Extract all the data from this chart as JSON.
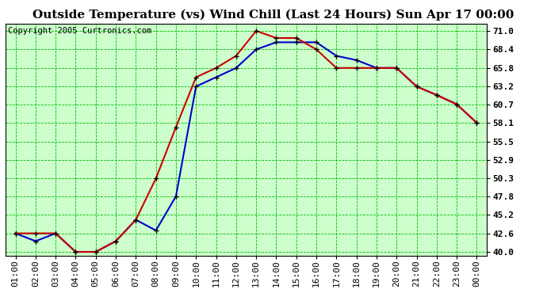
{
  "title": "Outside Temperature (vs) Wind Chill (Last 24 Hours) Sun Apr 17 00:00",
  "copyright": "Copyright 2005 Curtronics.com",
  "background_color": "#ffffff",
  "plot_background": "#ccffcc",
  "grid_color": "#00bb00",
  "x_labels": [
    "01:00",
    "02:00",
    "03:00",
    "04:00",
    "05:00",
    "06:00",
    "07:00",
    "08:00",
    "09:00",
    "10:00",
    "11:00",
    "12:00",
    "13:00",
    "14:00",
    "15:00",
    "16:00",
    "17:00",
    "18:00",
    "19:00",
    "20:00",
    "21:00",
    "22:00",
    "23:00",
    "00:00"
  ],
  "temp_color": "#cc0000",
  "windchill_color": "#0000cc",
  "marker_color": "#000000",
  "temp_values": [
    42.6,
    42.6,
    42.6,
    40.0,
    40.0,
    41.5,
    44.5,
    50.3,
    57.5,
    64.5,
    65.8,
    67.5,
    71.0,
    70.0,
    70.0,
    68.4,
    65.8,
    65.8,
    65.8,
    65.8,
    63.2,
    62.0,
    60.7,
    58.1
  ],
  "windchill_values": [
    42.6,
    41.5,
    42.6,
    40.0,
    40.0,
    41.5,
    44.5,
    43.0,
    47.8,
    63.2,
    64.5,
    65.8,
    68.4,
    69.4,
    69.4,
    69.4,
    67.5,
    66.9,
    65.8,
    65.8,
    63.2,
    62.0,
    60.7,
    58.1
  ],
  "yticks": [
    40.0,
    42.6,
    45.2,
    47.8,
    50.3,
    52.9,
    55.5,
    58.1,
    60.7,
    63.2,
    65.8,
    68.4,
    71.0
  ],
  "ylim": [
    39.5,
    72.0
  ],
  "title_fontsize": 11,
  "axis_fontsize": 8,
  "copyright_fontsize": 7.5
}
